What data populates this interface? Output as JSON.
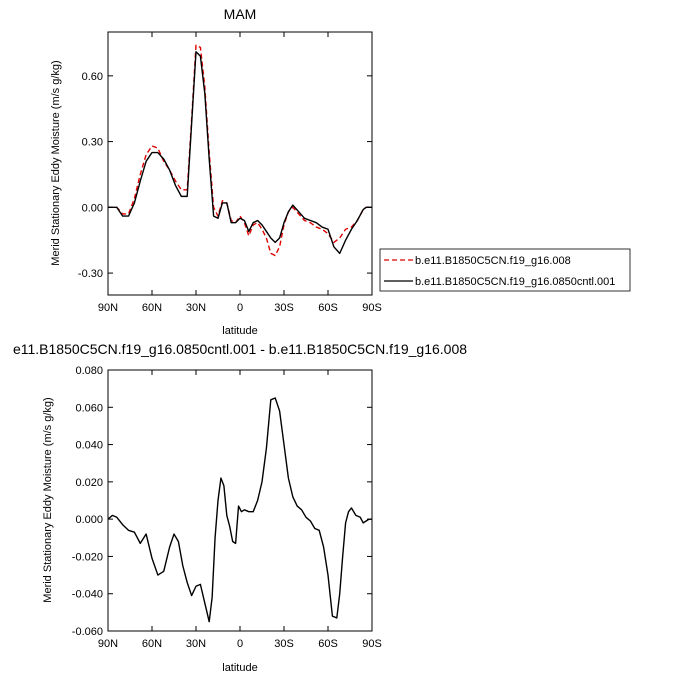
{
  "colors": {
    "axis": "#000000",
    "series_exp": "#e00000",
    "series_ctl": "#000000"
  },
  "x_ticks": [
    "90N",
    "60N",
    "30N",
    "0",
    "30S",
    "60S",
    "90S"
  ],
  "chart_data": [
    {
      "type": "line",
      "title": "MAM",
      "xlabel": "latitude",
      "ylabel": "Merid Stationary Eddy Moisture (m/s g/kg)",
      "xlim": [
        90,
        -90
      ],
      "ylim": [
        -0.4,
        0.8
      ],
      "y_ticks": [
        -0.3,
        0.0,
        0.3,
        0.6
      ],
      "y_tick_labels": [
        "-0.30",
        "0.00",
        "0.30",
        "0.60"
      ],
      "legend_position": "right",
      "legend": [
        {
          "label": "b.e11.B1850C5CN.f19_g16.008",
          "style": "dashed",
          "color": "#e00000"
        },
        {
          "label": "b.e11.B1850C5CN.f19_g16.0850cntl.001",
          "style": "solid",
          "color": "#000000"
        }
      ],
      "series": [
        {
          "name": "b.e11.B1850C5CN.f19_g16.008",
          "style": "dashed",
          "x": [
            90,
            84,
            80,
            76,
            72,
            68,
            64,
            60,
            56,
            52,
            48,
            44,
            40,
            36,
            33,
            30,
            27,
            24,
            21,
            18,
            15,
            12,
            9,
            6,
            3,
            0,
            -3,
            -6,
            -9,
            -12,
            -15,
            -18,
            -21,
            -24,
            -27,
            -30,
            -33,
            -36,
            -40,
            -44,
            -48,
            -52,
            -56,
            -60,
            -64,
            -68,
            -72,
            -76,
            -80,
            -84,
            -86,
            -90
          ],
          "y": [
            0.0,
            0.0,
            -0.03,
            -0.03,
            0.04,
            0.15,
            0.24,
            0.28,
            0.27,
            0.21,
            0.17,
            0.12,
            0.08,
            0.08,
            0.4,
            0.74,
            0.73,
            0.55,
            0.25,
            0.0,
            -0.04,
            0.03,
            0.02,
            -0.06,
            -0.07,
            -0.04,
            -0.07,
            -0.13,
            -0.08,
            -0.07,
            -0.1,
            -0.14,
            -0.21,
            -0.22,
            -0.18,
            -0.08,
            -0.02,
            0.0,
            -0.03,
            -0.06,
            -0.07,
            -0.09,
            -0.1,
            -0.12,
            -0.16,
            -0.14,
            -0.1,
            -0.09,
            -0.06,
            -0.01,
            0.0,
            0.0
          ]
        },
        {
          "name": "b.e11.B1850C5CN.f19_g16.0850cntl.001",
          "style": "solid",
          "x": [
            90,
            84,
            80,
            76,
            72,
            68,
            64,
            60,
            56,
            52,
            48,
            44,
            40,
            36,
            33,
            30,
            27,
            24,
            21,
            18,
            15,
            12,
            9,
            6,
            3,
            0,
            -3,
            -6,
            -9,
            -12,
            -15,
            -18,
            -21,
            -24,
            -27,
            -30,
            -33,
            -36,
            -40,
            -44,
            -48,
            -52,
            -56,
            -60,
            -64,
            -68,
            -72,
            -76,
            -80,
            -84,
            -86,
            -90
          ],
          "y": [
            0.0,
            0.0,
            -0.04,
            -0.04,
            0.02,
            0.12,
            0.21,
            0.25,
            0.25,
            0.22,
            0.17,
            0.1,
            0.05,
            0.05,
            0.38,
            0.71,
            0.69,
            0.52,
            0.22,
            -0.04,
            -0.05,
            0.02,
            0.02,
            -0.07,
            -0.07,
            -0.05,
            -0.06,
            -0.11,
            -0.07,
            -0.06,
            -0.08,
            -0.11,
            -0.14,
            -0.16,
            -0.14,
            -0.07,
            -0.02,
            0.01,
            -0.02,
            -0.05,
            -0.06,
            -0.07,
            -0.09,
            -0.1,
            -0.18,
            -0.21,
            -0.15,
            -0.1,
            -0.06,
            -0.01,
            0.0,
            0.0
          ]
        }
      ]
    },
    {
      "type": "line",
      "title": "e11.B1850C5CN.f19_g16.0850cntl.001 - b.e11.B1850C5CN.f19_g16.008",
      "xlabel": "latitude",
      "ylabel": "Merid Stationary Eddy Moisture (m/s g/kg)",
      "xlim": [
        90,
        -90
      ],
      "ylim": [
        -0.06,
        0.08
      ],
      "y_ticks": [
        -0.06,
        -0.04,
        -0.02,
        0.0,
        0.02,
        0.04,
        0.06,
        0.08
      ],
      "y_tick_labels": [
        "-0.060",
        "-0.040",
        "-0.020",
        "0.000",
        "0.020",
        "0.040",
        "0.060",
        "0.080"
      ],
      "series": [
        {
          "style": "solid",
          "x": [
            90,
            87,
            84,
            80,
            76,
            72,
            68,
            64,
            60,
            56,
            52,
            48,
            45,
            42,
            39,
            36,
            33,
            30,
            27,
            24,
            21,
            19,
            17,
            15,
            13,
            11,
            9,
            7,
            5,
            3,
            1,
            -1,
            -3,
            -6,
            -9,
            -12,
            -15,
            -18,
            -21,
            -24,
            -27,
            -30,
            -33,
            -36,
            -39,
            -42,
            -45,
            -48,
            -51,
            -54,
            -57,
            -60,
            -63,
            -66,
            -68,
            -70,
            -72,
            -74,
            -76,
            -79,
            -82,
            -84,
            -86,
            -88,
            -90
          ],
          "y": [
            0.0,
            0.002,
            0.001,
            -0.003,
            -0.006,
            -0.007,
            -0.013,
            -0.008,
            -0.021,
            -0.03,
            -0.028,
            -0.015,
            -0.008,
            -0.012,
            -0.025,
            -0.034,
            -0.041,
            -0.036,
            -0.035,
            -0.045,
            -0.055,
            -0.042,
            -0.01,
            0.01,
            0.022,
            0.018,
            0.002,
            -0.004,
            -0.012,
            -0.013,
            0.007,
            0.004,
            0.005,
            0.004,
            0.004,
            0.01,
            0.02,
            0.038,
            0.064,
            0.065,
            0.058,
            0.04,
            0.022,
            0.012,
            0.007,
            0.005,
            0.001,
            -0.001,
            -0.005,
            -0.006,
            -0.015,
            -0.03,
            -0.052,
            -0.053,
            -0.04,
            -0.02,
            -0.002,
            0.004,
            0.006,
            0.002,
            0.001,
            -0.002,
            -0.001,
            0.0,
            0.0
          ]
        }
      ]
    }
  ]
}
